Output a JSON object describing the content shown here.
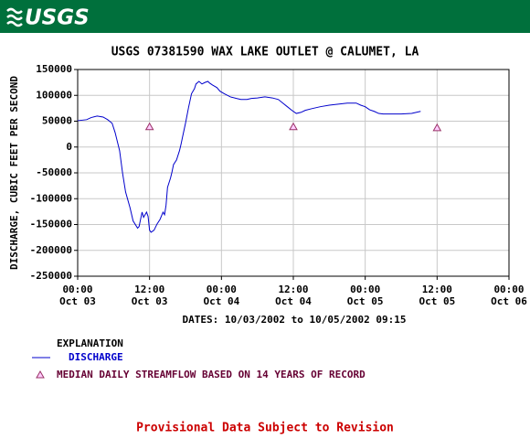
{
  "logo": "USGS",
  "chart_data": {
    "type": "line",
    "title": "USGS 07381590 WAX LAKE OUTLET @ CALUMET, LA",
    "x_label": "DATES: 10/03/2002 to 10/05/2002 09:15",
    "y_label": "DISCHARGE, CUBIC FEET PER SECOND",
    "legend_title": "EXPLANATION",
    "grid": true,
    "xlim": [
      "2002-10-03T00:00",
      "2002-10-06T00:00"
    ],
    "xticks": [
      {
        "value": "2002-10-03T00:00",
        "label": [
          "00:00",
          "Oct 03"
        ]
      },
      {
        "value": "2002-10-03T12:00",
        "label": [
          "12:00",
          "Oct 03"
        ]
      },
      {
        "value": "2002-10-04T00:00",
        "label": [
          "00:00",
          "Oct 04"
        ]
      },
      {
        "value": "2002-10-04T12:00",
        "label": [
          "12:00",
          "Oct 04"
        ]
      },
      {
        "value": "2002-10-05T00:00",
        "label": [
          "00:00",
          "Oct 05"
        ]
      },
      {
        "value": "2002-10-05T12:00",
        "label": [
          "12:00",
          "Oct 05"
        ]
      },
      {
        "value": "2002-10-06T00:00",
        "label": [
          "00:00",
          "Oct 06"
        ]
      }
    ],
    "ylim": [
      -250000,
      150000
    ],
    "yticks": [
      -250000,
      -200000,
      -150000,
      -100000,
      -50000,
      0,
      50000,
      100000,
      150000
    ],
    "series": [
      {
        "name": "DISCHARGE",
        "color": "#0000cc",
        "marker": "none",
        "x": [
          "2002-10-03T00:00",
          "2002-10-03T01:30",
          "2002-10-03T02:15",
          "2002-10-03T03:15",
          "2002-10-03T04:15",
          "2002-10-03T05:00",
          "2002-10-03T05:45",
          "2002-10-03T06:15",
          "2002-10-03T07:00",
          "2002-10-03T07:30",
          "2002-10-03T08:00",
          "2002-10-03T08:45",
          "2002-10-03T09:15",
          "2002-10-03T10:00",
          "2002-10-03T10:15",
          "2002-10-03T10:45",
          "2002-10-03T11:00",
          "2002-10-03T11:30",
          "2002-10-03T11:45",
          "2002-10-03T12:00",
          "2002-10-03T12:15",
          "2002-10-03T12:45",
          "2002-10-03T13:15",
          "2002-10-03T13:45",
          "2002-10-03T14:15",
          "2002-10-03T14:30",
          "2002-10-03T14:45",
          "2002-10-03T15:00",
          "2002-10-03T15:30",
          "2002-10-03T15:45",
          "2002-10-03T16:00",
          "2002-10-03T16:30",
          "2002-10-03T17:00",
          "2002-10-03T17:15",
          "2002-10-03T17:30",
          "2002-10-03T18:00",
          "2002-10-03T18:30",
          "2002-10-03T19:00",
          "2002-10-03T19:30",
          "2002-10-03T19:45",
          "2002-10-03T20:15",
          "2002-10-03T20:45",
          "2002-10-03T21:15",
          "2002-10-03T21:45",
          "2002-10-03T22:00",
          "2002-10-03T22:30",
          "2002-10-03T23:15",
          "2002-10-03T23:45",
          "2002-10-04T00:30",
          "2002-10-04T01:30",
          "2002-10-04T02:30",
          "2002-10-04T03:15",
          "2002-10-04T04:15",
          "2002-10-04T05:00",
          "2002-10-04T06:00",
          "2002-10-04T07:15",
          "2002-10-04T08:30",
          "2002-10-04T09:30",
          "2002-10-04T10:15",
          "2002-10-04T11:00",
          "2002-10-04T11:45",
          "2002-10-04T12:30",
          "2002-10-04T13:15",
          "2002-10-04T14:00",
          "2002-10-04T15:00",
          "2002-10-04T16:30",
          "2002-10-04T18:00",
          "2002-10-04T19:30",
          "2002-10-04T21:00",
          "2002-10-04T22:30",
          "2002-10-04T23:15",
          "2002-10-05T00:00",
          "2002-10-05T00:45",
          "2002-10-05T01:30",
          "2002-10-05T02:15",
          "2002-10-05T03:00",
          "2002-10-05T04:30",
          "2002-10-05T06:00",
          "2002-10-05T07:45",
          "2002-10-05T09:15"
        ],
        "values": [
          51000,
          53000,
          57000,
          60000,
          58000,
          53000,
          46000,
          28000,
          -7000,
          -51000,
          -87000,
          -118000,
          -143000,
          -157000,
          -154000,
          -126000,
          -136000,
          -126000,
          -134000,
          -161000,
          -165000,
          -161000,
          -149000,
          -140000,
          -126000,
          -131000,
          -113000,
          -78000,
          -60000,
          -48000,
          -34000,
          -25000,
          -7000,
          5000,
          19000,
          46000,
          76000,
          103000,
          113000,
          122000,
          127000,
          122000,
          125000,
          127000,
          124000,
          120000,
          115000,
          108000,
          103000,
          97000,
          94000,
          92000,
          92000,
          94000,
          95000,
          97000,
          95000,
          92000,
          85000,
          78000,
          71000,
          65000,
          67000,
          71000,
          74000,
          78000,
          81000,
          83000,
          85000,
          85000,
          81000,
          78000,
          72000,
          69000,
          65000,
          64000,
          64000,
          64000,
          65000,
          69000
        ]
      },
      {
        "name": "MEDIAN DAILY STREAMFLOW BASED ON 14 YEARS OF RECORD",
        "color": "#993366",
        "text_color": "#660033",
        "marker": "triangle",
        "x": [
          "2002-10-03T12:00",
          "2002-10-04T12:00",
          "2002-10-05T12:00"
        ],
        "values": [
          39000,
          39000,
          37000
        ]
      }
    ]
  },
  "footer": "Provisional Data Subject to Revision"
}
